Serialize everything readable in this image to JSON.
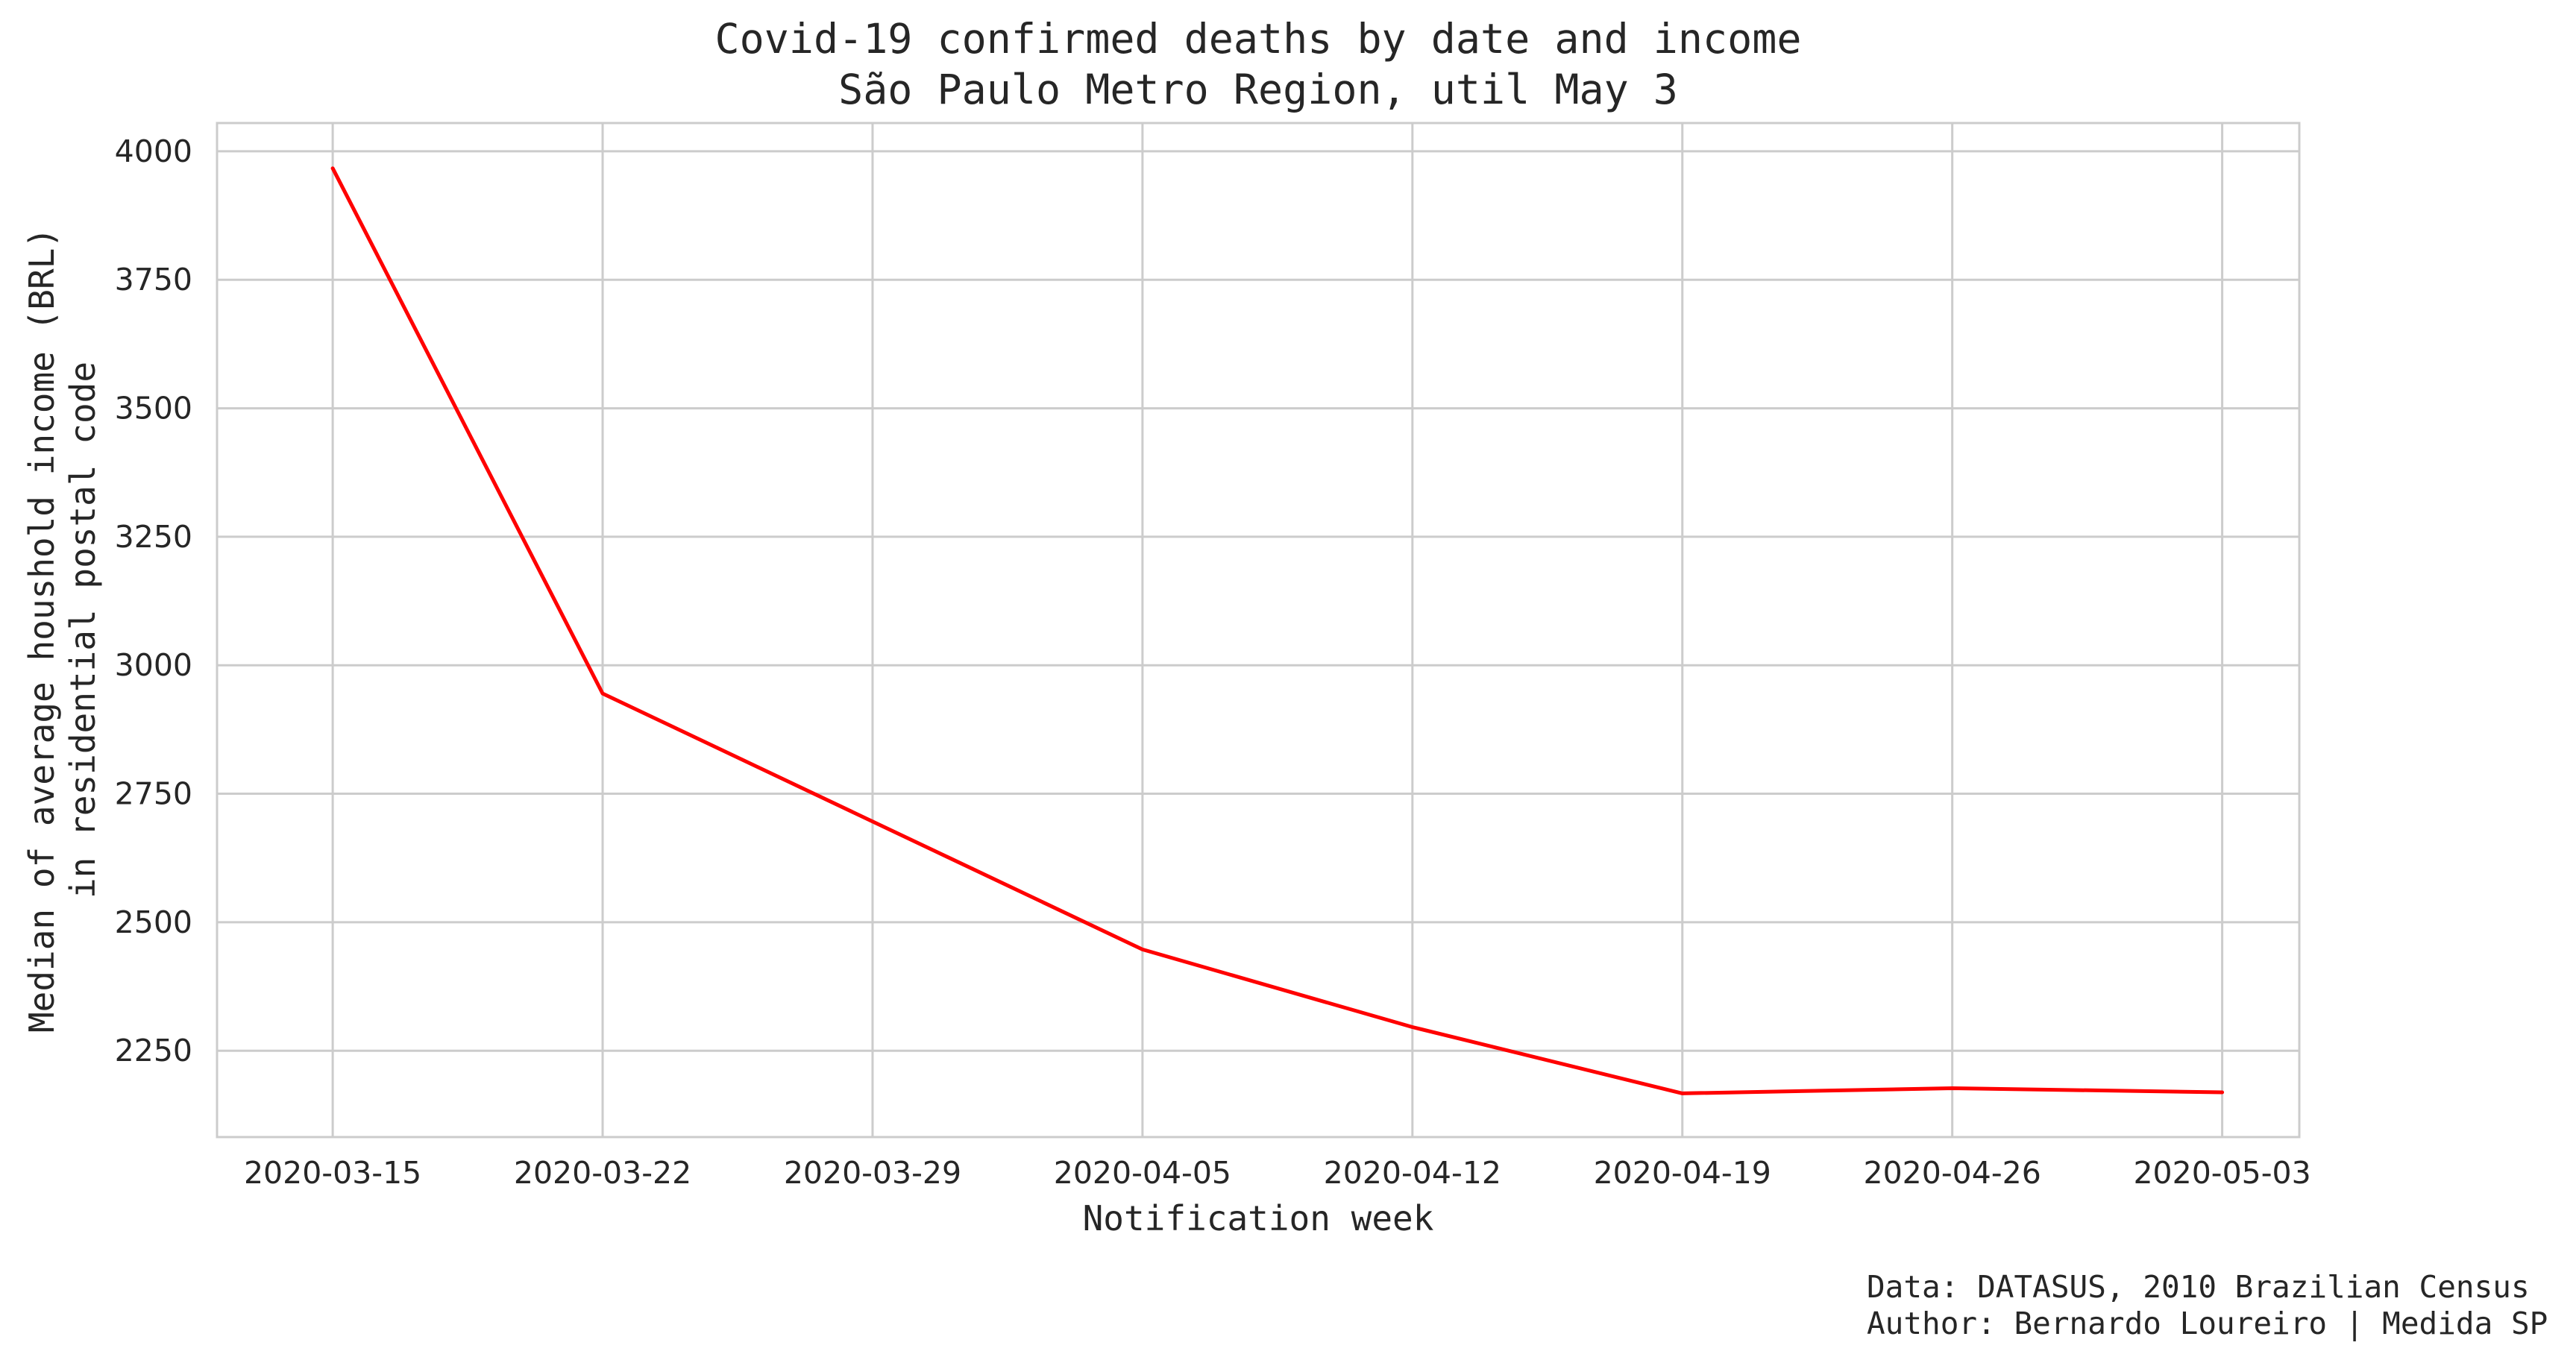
{
  "chart_data": {
    "type": "line",
    "title": "Covid-19 confirmed deaths by date and income",
    "subtitle": "São Paulo Metro Region, util May 3",
    "xlabel": "Notification week",
    "ylabel_lines": [
      "Median of average houshold income (BRL)",
      "in residential postal code"
    ],
    "x": [
      "2020-03-15",
      "2020-03-22",
      "2020-03-29",
      "2020-04-05",
      "2020-04-12",
      "2020-04-19",
      "2020-04-26",
      "2020-05-03"
    ],
    "x_tick_labels": [
      "2020-03-15",
      "2020-03-22",
      "2020-03-29",
      "2020-04-05",
      "2020-04-12",
      "2020-04-19",
      "2020-04-26",
      "2020-05-03"
    ],
    "series": [
      {
        "values": [
          3967,
          2945,
          null,
          2447,
          2296,
          2167,
          2177,
          2169
        ]
      }
    ],
    "y_ticks": [
      2250,
      2500,
      2750,
      3000,
      3250,
      3500,
      3750,
      4000
    ],
    "xlim": [
      "2020-03-12",
      "2020-05-05"
    ],
    "ylim": [
      2082,
      4055
    ],
    "grid": true,
    "line_color": "#ff0000",
    "grid_color": "#cccccc",
    "source_lines": [
      "Data: DATASUS, 2010 Brazilian Census",
      "Author: Bernardo Loureiro | Medida SP"
    ]
  }
}
